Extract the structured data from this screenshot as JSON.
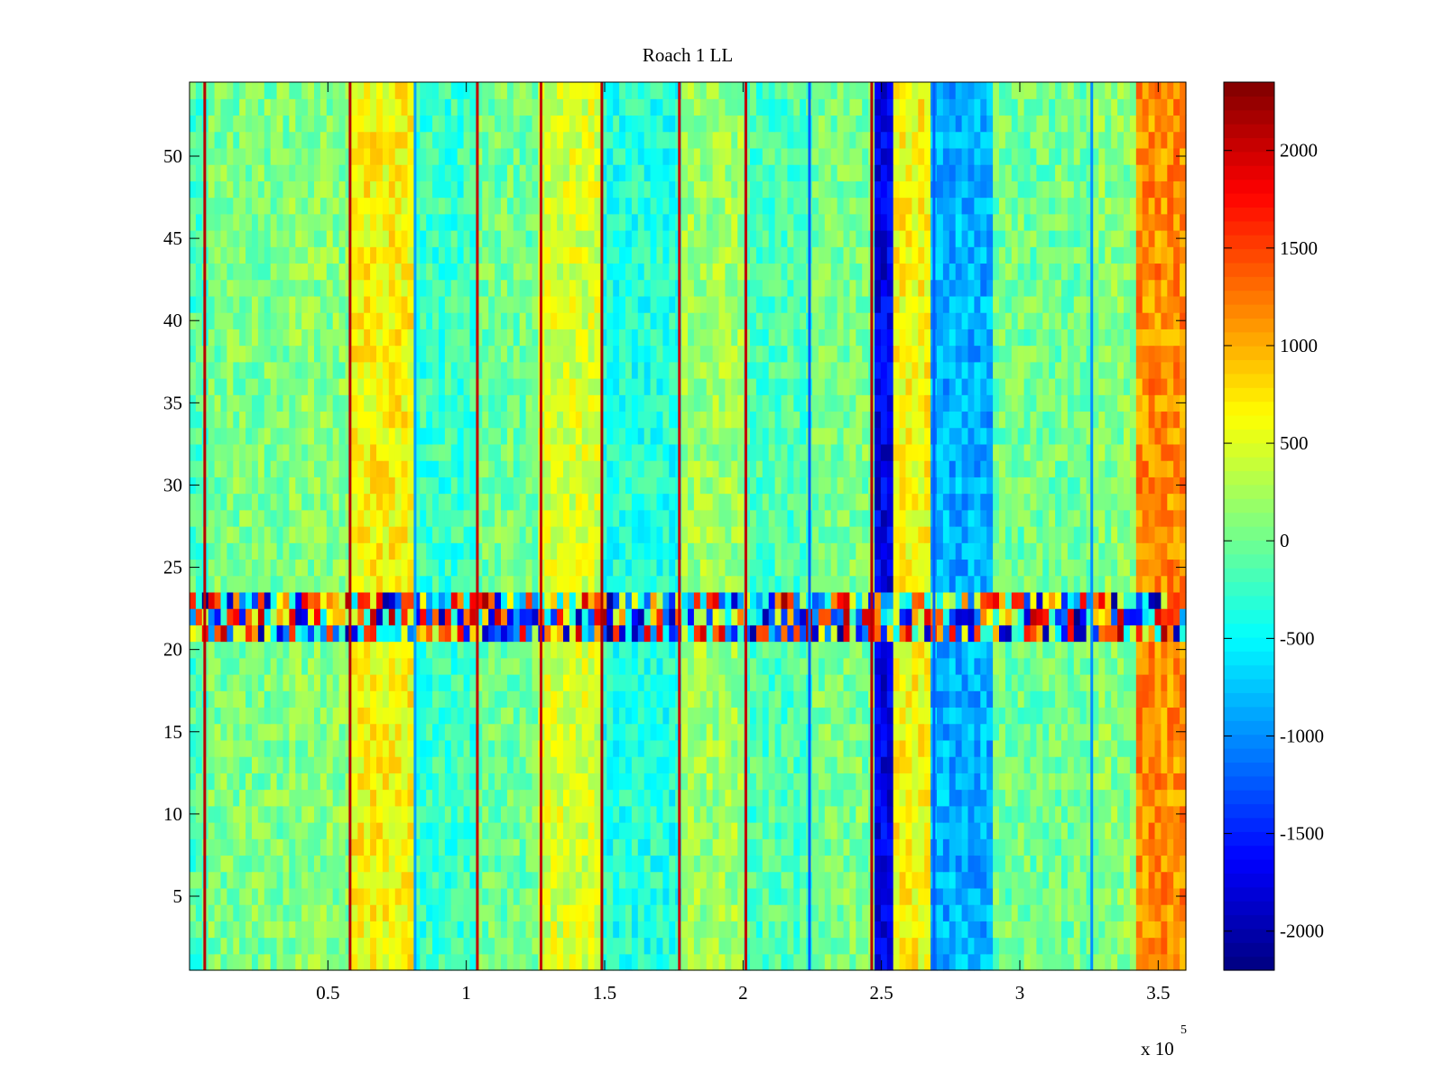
{
  "chart_data": {
    "type": "heatmap",
    "title": "Roach 1 LL",
    "xlabel": "",
    "ylabel": "",
    "x_multiplier_label": {
      "base": "x 10",
      "exponent": "5"
    },
    "xlim": [
      0,
      3.6
    ],
    "ylim": [
      0.5,
      54.5
    ],
    "xticks": [
      0.5,
      1,
      1.5,
      2,
      2.5,
      3,
      3.5
    ],
    "xtick_labels": [
      "0.5",
      "1",
      "1.5",
      "2",
      "2.5",
      "3",
      "3.5"
    ],
    "yticks": [
      5,
      10,
      15,
      20,
      25,
      30,
      35,
      40,
      45,
      50
    ],
    "ytick_labels": [
      "5",
      "10",
      "15",
      "20",
      "25",
      "30",
      "35",
      "40",
      "45",
      "50"
    ],
    "n_rows": 54,
    "colormap": "jet",
    "colorbar": {
      "clim": [
        -2200,
        2350
      ],
      "ticks": [
        -2000,
        -1500,
        -1000,
        -500,
        0,
        500,
        1000,
        1500,
        2000
      ],
      "tick_labels": [
        "-2000",
        "-1500",
        "-1000",
        "-500",
        "0",
        "500",
        "1000",
        "1500",
        "2000"
      ]
    },
    "noisy_rows": [
      21,
      22,
      23
    ],
    "column_bands": [
      {
        "x_start": 0.0,
        "x_end": 0.06,
        "value": -150
      },
      {
        "x_start": 0.06,
        "x_end": 0.36,
        "value": 50
      },
      {
        "x_start": 0.36,
        "x_end": 0.58,
        "value": 100
      },
      {
        "x_start": 0.58,
        "x_end": 0.82,
        "value": 650
      },
      {
        "x_start": 0.82,
        "x_end": 1.04,
        "value": -250
      },
      {
        "x_start": 1.04,
        "x_end": 1.27,
        "value": 0
      },
      {
        "x_start": 1.27,
        "x_end": 1.49,
        "value": 450
      },
      {
        "x_start": 1.49,
        "x_end": 1.77,
        "value": -350
      },
      {
        "x_start": 1.77,
        "x_end": 2.01,
        "value": 200
      },
      {
        "x_start": 2.01,
        "x_end": 2.24,
        "value": -150
      },
      {
        "x_start": 2.24,
        "x_end": 2.47,
        "value": 50
      },
      {
        "x_start": 2.47,
        "x_end": 2.54,
        "value": -1750
      },
      {
        "x_start": 2.54,
        "x_end": 2.68,
        "value": 650
      },
      {
        "x_start": 2.68,
        "x_end": 2.9,
        "value": -850
      },
      {
        "x_start": 2.9,
        "x_end": 3.26,
        "value": 0
      },
      {
        "x_start": 3.26,
        "x_end": 3.42,
        "value": 100
      },
      {
        "x_start": 3.42,
        "x_end": 3.6,
        "value": 1150
      }
    ],
    "spike_lines": [
      {
        "x": 0.055,
        "value": 2100
      },
      {
        "x": 0.58,
        "value": 2100
      },
      {
        "x": 0.815,
        "value": -900
      },
      {
        "x": 1.04,
        "value": 2050
      },
      {
        "x": 1.27,
        "value": 2050
      },
      {
        "x": 1.49,
        "value": 2150
      },
      {
        "x": 1.77,
        "value": 2000
      },
      {
        "x": 2.01,
        "value": 2050
      },
      {
        "x": 2.24,
        "value": -1200
      },
      {
        "x": 2.465,
        "value": 2100
      },
      {
        "x": 2.69,
        "value": -1200
      },
      {
        "x": 3.26,
        "value": -1000
      }
    ]
  }
}
